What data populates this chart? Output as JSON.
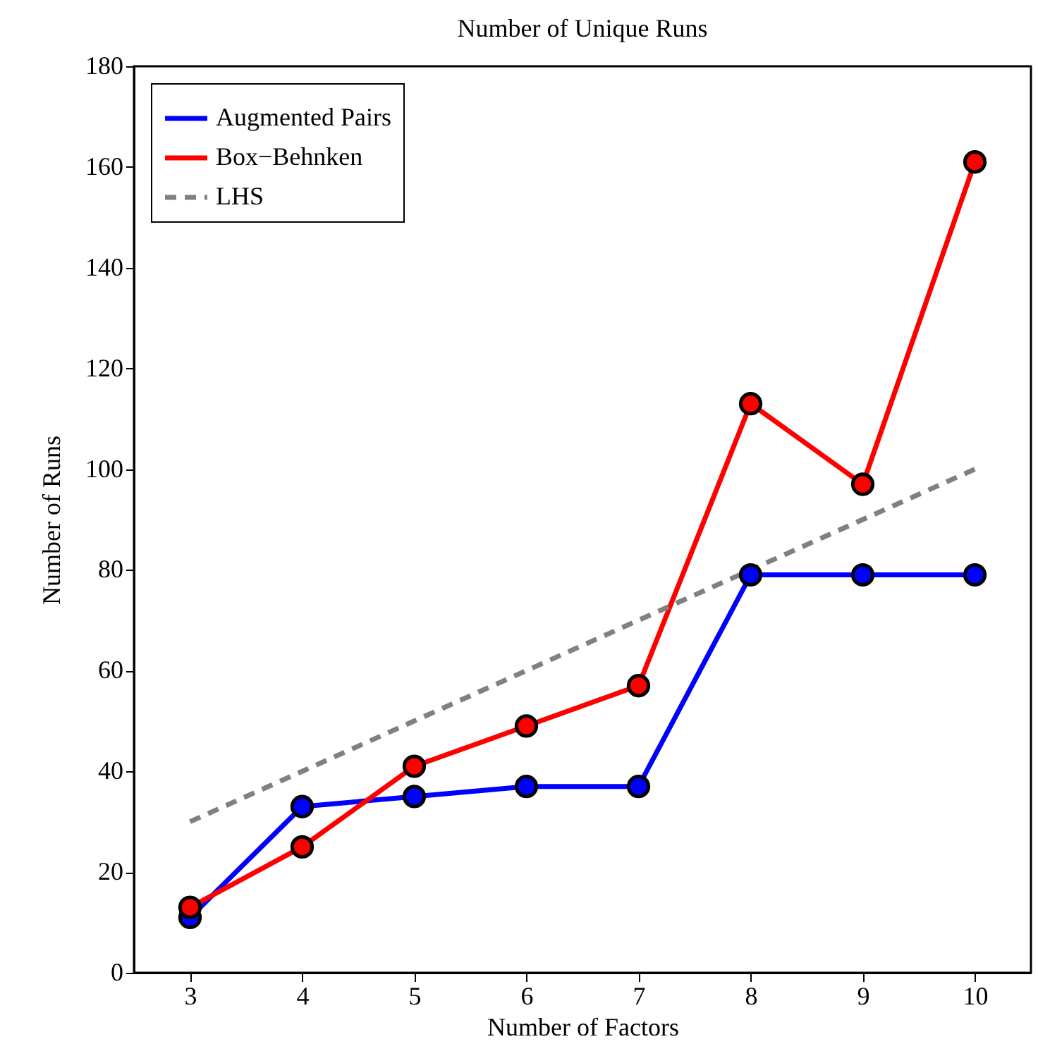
{
  "chart_data": {
    "type": "line",
    "title": "Number of Unique Runs",
    "xlabel": "Number of Factors",
    "ylabel": "Number of Runs",
    "x": [
      3,
      4,
      5,
      6,
      7,
      8,
      9,
      10
    ],
    "series": [
      {
        "name": "Augmented Pairs",
        "color": "#0000ff",
        "values": [
          11,
          33,
          35,
          37,
          37,
          79,
          79,
          79
        ]
      },
      {
        "name": "Box−Behnken",
        "color": "#ff0000",
        "values": [
          13,
          25,
          41,
          49,
          57,
          113,
          97,
          161
        ]
      },
      {
        "name": "LHS",
        "color": "#808080",
        "values": [
          30,
          40,
          50,
          60,
          70,
          80,
          90,
          100
        ],
        "marker": "none",
        "line_style": "dashed"
      }
    ],
    "xlim": [
      2.5,
      10.5
    ],
    "xticks": [
      3,
      4,
      5,
      6,
      7,
      8,
      9,
      10
    ],
    "ylim": [
      0,
      180
    ],
    "yticks": [
      0,
      20,
      40,
      60,
      80,
      100,
      120,
      140,
      160,
      180
    ],
    "grid": false,
    "legend": "top left",
    "marker": "circle",
    "line_style": "solid"
  }
}
